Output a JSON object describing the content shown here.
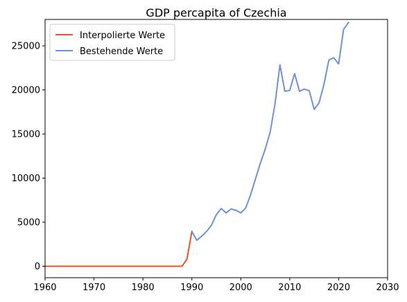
{
  "chart_data": {
    "type": "line",
    "title": "GDP percapita of Czechia",
    "xlim": [
      1960,
      2030
    ],
    "ylim": [
      0,
      28000
    ],
    "x_ticks": [
      1960,
      1970,
      1980,
      1990,
      2000,
      2010,
      2020,
      2030
    ],
    "y_ticks": [
      0,
      5000,
      10000,
      15000,
      20000,
      25000
    ],
    "legend": {
      "placement": "top-left"
    },
    "grid": false,
    "series": [
      {
        "name": "Interpolierte Werte",
        "color": "#f0511e",
        "x": [
          1960,
          1961,
          1962,
          1963,
          1964,
          1965,
          1966,
          1967,
          1968,
          1969,
          1970,
          1971,
          1972,
          1973,
          1974,
          1975,
          1976,
          1977,
          1978,
          1979,
          1980,
          1981,
          1982,
          1983,
          1984,
          1985,
          1986,
          1987,
          1988,
          1989,
          1990
        ],
        "y": [
          0,
          0,
          0,
          0,
          0,
          0,
          0,
          0,
          0,
          0,
          0,
          0,
          0,
          0,
          0,
          0,
          0,
          0,
          0,
          0,
          0,
          0,
          0,
          0,
          0,
          0,
          0,
          0,
          0,
          800,
          3950
        ]
      },
      {
        "name": "Bestehende Werte",
        "color": "#6f8fde",
        "x": [
          1990,
          1991,
          1992,
          1993,
          1994,
          1995,
          1996,
          1997,
          1998,
          1999,
          2000,
          2001,
          2002,
          2003,
          2004,
          2005,
          2006,
          2007,
          2008,
          2009,
          2010,
          2011,
          2012,
          2013,
          2014,
          2015,
          2016,
          2017,
          2018,
          2019,
          2020,
          2021,
          2022
        ],
        "y": [
          3950,
          2950,
          3400,
          3950,
          4650,
          5850,
          6550,
          6050,
          6500,
          6350,
          6050,
          6600,
          8100,
          9900,
          11700,
          13300,
          15200,
          18450,
          22850,
          19850,
          19950,
          21850,
          19850,
          20100,
          19900,
          17800,
          18550,
          20650,
          23400,
          23650,
          22950,
          26850,
          27650
        ]
      }
    ]
  }
}
